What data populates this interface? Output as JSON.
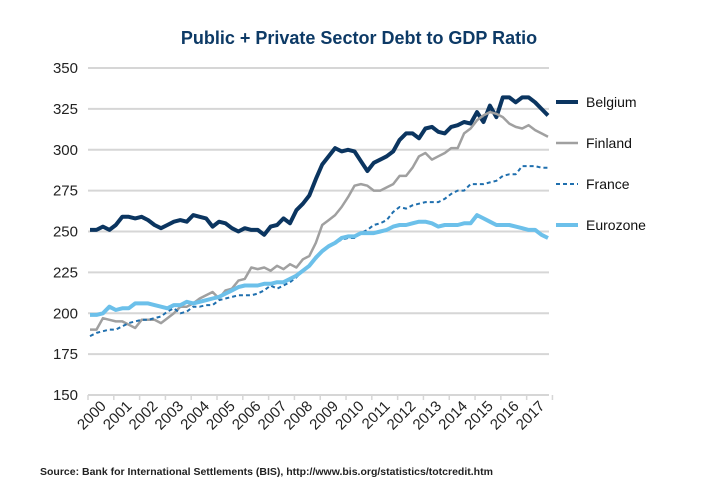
{
  "chart_data": {
    "type": "line",
    "title": "Public + Private Sector Debt to GDP Ratio",
    "xlabel": "",
    "ylabel": "",
    "ylim": [
      150,
      350
    ],
    "yticks": [
      "150",
      "175",
      "200",
      "225",
      "250",
      "275",
      "300",
      "325",
      "350"
    ],
    "xticks": [
      "2000",
      "2001",
      "2002",
      "2003",
      "2004",
      "2005",
      "2006",
      "2007",
      "2008",
      "2009",
      "2010",
      "2011",
      "2012",
      "2013",
      "2014",
      "2015",
      "2016",
      "2017"
    ],
    "xlim": [
      2000,
      2017.75
    ],
    "grid": true,
    "legend_position": "right",
    "source": "Source: Bank for International Settlements (BIS), http://www.bis.org/statistics/totcredit.htm",
    "series": [
      {
        "name": "Belgium",
        "color": "#0b3560",
        "style": "solid",
        "width": 4,
        "x": [
          2000,
          2000.25,
          2000.5,
          2000.75,
          2001,
          2001.25,
          2001.5,
          2001.75,
          2002,
          2002.25,
          2002.5,
          2002.75,
          2003,
          2003.25,
          2003.5,
          2003.75,
          2004,
          2004.25,
          2004.5,
          2004.75,
          2005,
          2005.25,
          2005.5,
          2005.75,
          2006,
          2006.25,
          2006.5,
          2006.75,
          2007,
          2007.25,
          2007.5,
          2007.75,
          2008,
          2008.25,
          2008.5,
          2008.75,
          2009,
          2009.25,
          2009.5,
          2009.75,
          2010,
          2010.25,
          2010.5,
          2010.75,
          2011,
          2011.25,
          2011.5,
          2011.75,
          2012,
          2012.25,
          2012.5,
          2012.75,
          2013,
          2013.25,
          2013.5,
          2013.75,
          2014,
          2014.25,
          2014.5,
          2014.75,
          2015,
          2015.25,
          2015.5,
          2015.75,
          2016,
          2016.25,
          2016.5,
          2016.75,
          2017,
          2017.25,
          2017.5,
          2017.75
        ],
        "y": [
          251,
          251,
          253,
          251,
          254,
          259,
          259,
          258,
          259,
          257,
          254,
          252,
          254,
          256,
          257,
          256,
          260,
          259,
          258,
          253,
          256,
          255,
          252,
          250,
          252,
          251,
          251,
          248,
          253,
          254,
          258,
          255,
          263,
          267,
          272,
          282,
          291,
          296,
          301,
          299,
          300,
          299,
          293,
          287,
          292,
          294,
          296,
          299,
          306,
          310,
          310,
          307,
          313,
          314,
          311,
          310,
          314,
          315,
          317,
          316,
          323,
          317,
          327,
          320,
          332,
          332,
          329,
          332,
          332,
          329,
          325,
          321
        ]
      },
      {
        "name": "Finland",
        "color": "#a0a0a0",
        "style": "solid",
        "width": 2.5,
        "x": [
          2000,
          2000.25,
          2000.5,
          2000.75,
          2001,
          2001.25,
          2001.5,
          2001.75,
          2002,
          2002.25,
          2002.5,
          2002.75,
          2003,
          2003.25,
          2003.5,
          2003.75,
          2004,
          2004.25,
          2004.5,
          2004.75,
          2005,
          2005.25,
          2005.5,
          2005.75,
          2006,
          2006.25,
          2006.5,
          2006.75,
          2007,
          2007.25,
          2007.5,
          2007.75,
          2008,
          2008.25,
          2008.5,
          2008.75,
          2009,
          2009.25,
          2009.5,
          2009.75,
          2010,
          2010.25,
          2010.5,
          2010.75,
          2011,
          2011.25,
          2011.5,
          2011.75,
          2012,
          2012.25,
          2012.5,
          2012.75,
          2013,
          2013.25,
          2013.5,
          2013.75,
          2014,
          2014.25,
          2014.5,
          2014.75,
          2015,
          2015.25,
          2015.5,
          2015.75,
          2016,
          2016.25,
          2016.5,
          2016.75,
          2017,
          2017.25,
          2017.5,
          2017.75
        ],
        "y": [
          190,
          190,
          197,
          196,
          195,
          195,
          193,
          191,
          196,
          196,
          196,
          194,
          197,
          200,
          204,
          204,
          206,
          209,
          211,
          213,
          209,
          214,
          215,
          220,
          221,
          228,
          227,
          228,
          226,
          229,
          227,
          230,
          228,
          233,
          235,
          243,
          254,
          257,
          260,
          265,
          271,
          278,
          279,
          278,
          275,
          275,
          277,
          279,
          284,
          284,
          289,
          296,
          298,
          294,
          296,
          298,
          301,
          301,
          310,
          313,
          318,
          321,
          323,
          322,
          320,
          316,
          314,
          313,
          315,
          312,
          310,
          308
        ]
      },
      {
        "name": "France",
        "color": "#1f6fae",
        "style": "dashed",
        "width": 2,
        "x": [
          2000,
          2000.25,
          2000.5,
          2000.75,
          2001,
          2001.25,
          2001.5,
          2001.75,
          2002,
          2002.25,
          2002.5,
          2002.75,
          2003,
          2003.25,
          2003.5,
          2003.75,
          2004,
          2004.25,
          2004.5,
          2004.75,
          2005,
          2005.25,
          2005.5,
          2005.75,
          2006,
          2006.25,
          2006.5,
          2006.75,
          2007,
          2007.25,
          2007.5,
          2007.75,
          2008,
          2008.25,
          2008.5,
          2008.75,
          2009,
          2009.25,
          2009.5,
          2009.75,
          2010,
          2010.25,
          2010.5,
          2010.75,
          2011,
          2011.25,
          2011.5,
          2011.75,
          2012,
          2012.25,
          2012.5,
          2012.75,
          2013,
          2013.25,
          2013.5,
          2013.75,
          2014,
          2014.25,
          2014.5,
          2014.75,
          2015,
          2015.25,
          2015.5,
          2015.75,
          2016,
          2016.25,
          2016.5,
          2016.75,
          2017,
          2017.25,
          2017.5,
          2017.75
        ],
        "y": [
          186,
          188,
          189,
          190,
          190,
          192,
          194,
          195,
          196,
          196,
          197,
          198,
          201,
          203,
          200,
          201,
          204,
          204,
          205,
          205,
          208,
          209,
          210,
          211,
          211,
          211,
          212,
          214,
          217,
          215,
          217,
          219,
          222,
          226,
          229,
          233,
          238,
          241,
          243,
          245,
          246,
          246,
          249,
          251,
          254,
          255,
          257,
          262,
          265,
          264,
          266,
          267,
          268,
          268,
          268,
          270,
          273,
          275,
          275,
          279,
          279,
          279,
          280,
          281,
          284,
          285,
          285,
          290,
          290,
          290,
          289,
          289
        ]
      },
      {
        "name": "Eurozone",
        "color": "#6cc0ea",
        "style": "solid",
        "width": 4,
        "x": [
          2000,
          2000.25,
          2000.5,
          2000.75,
          2001,
          2001.25,
          2001.5,
          2001.75,
          2002,
          2002.25,
          2002.5,
          2002.75,
          2003,
          2003.25,
          2003.5,
          2003.75,
          2004,
          2004.25,
          2004.5,
          2004.75,
          2005,
          2005.25,
          2005.5,
          2005.75,
          2006,
          2006.25,
          2006.5,
          2006.75,
          2007,
          2007.25,
          2007.5,
          2007.75,
          2008,
          2008.25,
          2008.5,
          2008.75,
          2009,
          2009.25,
          2009.5,
          2009.75,
          2010,
          2010.25,
          2010.5,
          2010.75,
          2011,
          2011.25,
          2011.5,
          2011.75,
          2012,
          2012.25,
          2012.5,
          2012.75,
          2013,
          2013.25,
          2013.5,
          2013.75,
          2014,
          2014.25,
          2014.5,
          2014.75,
          2015,
          2015.25,
          2015.5,
          2015.75,
          2016,
          2016.25,
          2016.5,
          2016.75,
          2017,
          2017.25,
          2017.5,
          2017.75
        ],
        "y": [
          199,
          199,
          200,
          204,
          202,
          203,
          203,
          206,
          206,
          206,
          205,
          204,
          203,
          205,
          205,
          207,
          206,
          207,
          208,
          209,
          210,
          212,
          214,
          216,
          217,
          217,
          217,
          218,
          218,
          219,
          219,
          221,
          223,
          226,
          229,
          234,
          238,
          241,
          243,
          246,
          247,
          247,
          249,
          249,
          249,
          250,
          251,
          253,
          254,
          254,
          255,
          256,
          256,
          255,
          253,
          254,
          254,
          254,
          255,
          255,
          260,
          258,
          256,
          254,
          254,
          254,
          253,
          252,
          251,
          251,
          248,
          246
        ]
      }
    ]
  }
}
